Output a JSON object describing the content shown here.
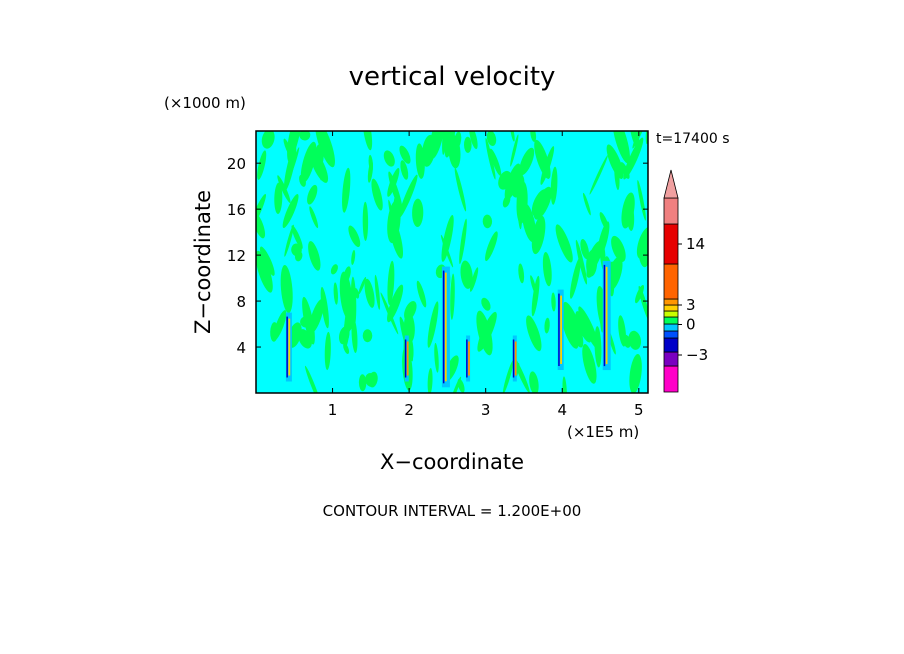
{
  "chart_data": {
    "type": "heatmap",
    "title": "vertical velocity",
    "xlabel": "X−coordinate",
    "ylabel": "Z−coordinate",
    "x_unit": "(×1E5 m)",
    "y_unit": "(×1000 m)",
    "time_label": "t=17400 s",
    "footer": "CONTOUR INTERVAL = 1.200E+00",
    "x_ticks": [
      "1",
      "2",
      "3",
      "4",
      "5"
    ],
    "x_tick_values": [
      1,
      2,
      3,
      4,
      5
    ],
    "y_ticks": [
      "4",
      "8",
      "12",
      "16",
      "20"
    ],
    "y_tick_values": [
      4,
      8,
      12,
      16,
      20
    ],
    "xlim": [
      0,
      5.12
    ],
    "ylim": [
      0,
      22.8
    ],
    "background_color": "#00ffff",
    "dominant_band_color": "#00ff5a",
    "colorbar": {
      "colors_bottom_to_top": [
        "#ff00c8",
        "#7a00c0",
        "#0000c8",
        "#0050ff",
        "#00c8ff",
        "#00ff5a",
        "#c8ff00",
        "#ffd000",
        "#ff9600",
        "#ff6400",
        "#e60000",
        "#f08080",
        "#f0a0a0"
      ],
      "tick_labels": [
        "−3",
        "0",
        "3",
        "14"
      ],
      "tick_values": [
        -3,
        0,
        3,
        14
      ]
    },
    "features": [
      {
        "x": 2.48,
        "z_from": 0.5,
        "z_to": 11.0,
        "intensity": "strong"
      },
      {
        "x": 4.58,
        "z_from": 2.0,
        "z_to": 11.5,
        "intensity": "strong"
      },
      {
        "x": 3.98,
        "z_from": 2.0,
        "z_to": 9.0,
        "intensity": "medium"
      },
      {
        "x": 0.43,
        "z_from": 1.0,
        "z_to": 7.0,
        "intensity": "medium"
      },
      {
        "x": 1.97,
        "z_from": 1.0,
        "z_to": 5.0,
        "intensity": "weak"
      },
      {
        "x": 2.77,
        "z_from": 1.0,
        "z_to": 5.0,
        "intensity": "weak"
      },
      {
        "x": 3.38,
        "z_from": 1.0,
        "z_to": 5.0,
        "intensity": "weak"
      }
    ]
  }
}
